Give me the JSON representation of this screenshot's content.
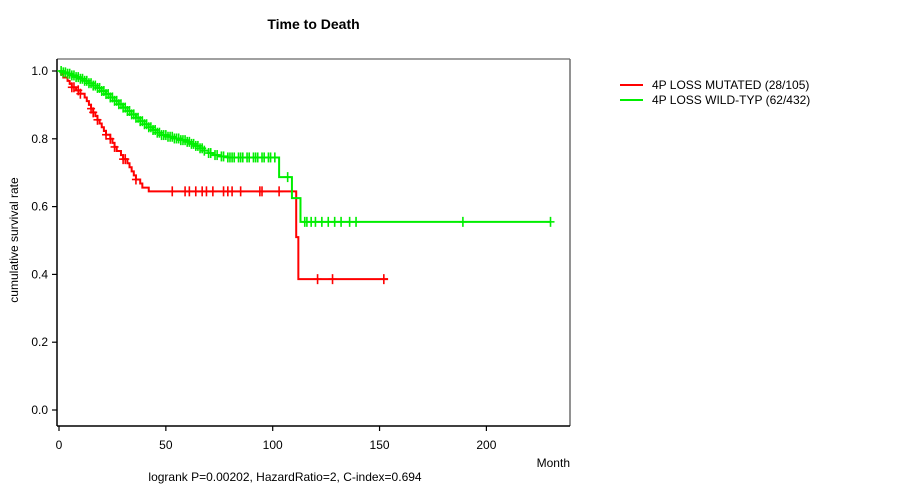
{
  "title": "Time to Death",
  "axes": {
    "x_label": "Month",
    "y_label": "cumulative survival rate",
    "x_ticks": [
      0,
      50,
      100,
      150,
      200
    ],
    "y_ticks": [
      "0.0",
      "0.2",
      "0.4",
      "0.6",
      "0.8",
      "1.0"
    ],
    "y_tick_values": [
      0.0,
      0.2,
      0.4,
      0.6,
      0.8,
      1.0
    ]
  },
  "footer": "logrank P=0.00202, HazardRatio=2, C-index=0.694",
  "legend": [
    {
      "label": "4P LOSS MUTATED (28/105)",
      "color": "#ff0000"
    },
    {
      "label": "4P LOSS WILD-TYP (62/432)",
      "color": "#00ee00"
    }
  ],
  "chart_data": {
    "type": "line",
    "subtype": "kaplan-meier-step",
    "title": "Time to Death",
    "xlabel": "Month",
    "ylabel": "cumulative survival rate",
    "xlim": [
      0,
      240
    ],
    "ylim": [
      0,
      1.0
    ],
    "grid": false,
    "legend_position": "right-outside",
    "stats_text": "logrank P=0.00202, HazardRatio=2, C-index=0.694",
    "series": [
      {
        "name": "4P LOSS MUTATED (28/105)",
        "color": "#ff0000",
        "events_over_n": "28/105",
        "end_month": 154,
        "steps": [
          [
            0,
            1.0
          ],
          [
            1,
            0.99
          ],
          [
            2,
            0.981
          ],
          [
            4,
            0.971
          ],
          [
            5,
            0.962
          ],
          [
            6,
            0.952
          ],
          [
            8,
            0.943
          ],
          [
            10,
            0.933
          ],
          [
            12,
            0.922
          ],
          [
            13,
            0.911
          ],
          [
            14,
            0.9
          ],
          [
            15,
            0.889
          ],
          [
            16,
            0.878
          ],
          [
            17,
            0.867
          ],
          [
            18,
            0.856
          ],
          [
            19,
            0.845
          ],
          [
            20,
            0.834
          ],
          [
            21,
            0.823
          ],
          [
            22,
            0.812
          ],
          [
            24,
            0.8
          ],
          [
            25,
            0.788
          ],
          [
            26,
            0.776
          ],
          [
            27,
            0.764
          ],
          [
            29,
            0.752
          ],
          [
            30,
            0.74
          ],
          [
            32,
            0.728
          ],
          [
            33,
            0.716
          ],
          [
            34,
            0.704
          ],
          [
            35,
            0.692
          ],
          [
            36,
            0.68
          ],
          [
            38,
            0.668
          ],
          [
            39,
            0.656
          ],
          [
            42,
            0.645
          ],
          [
            111,
            0.51
          ],
          [
            112,
            0.386
          ]
        ],
        "censor_months": [
          6,
          7,
          9,
          10,
          15,
          16,
          18,
          22,
          24,
          26,
          30,
          31,
          36,
          53,
          59,
          61,
          64,
          67,
          69,
          72,
          77,
          79,
          81,
          85,
          94,
          95,
          103,
          121,
          128,
          152
        ]
      },
      {
        "name": "4P LOSS WILD-TYP (62/432)",
        "color": "#00ee00",
        "events_over_n": "62/432",
        "end_month": 230,
        "steps": [
          [
            0,
            1.0
          ],
          [
            2,
            0.996
          ],
          [
            4,
            0.992
          ],
          [
            6,
            0.987
          ],
          [
            8,
            0.982
          ],
          [
            10,
            0.977
          ],
          [
            12,
            0.971
          ],
          [
            14,
            0.964
          ],
          [
            16,
            0.957
          ],
          [
            18,
            0.95
          ],
          [
            20,
            0.941
          ],
          [
            22,
            0.932
          ],
          [
            24,
            0.922
          ],
          [
            26,
            0.912
          ],
          [
            28,
            0.902
          ],
          [
            30,
            0.892
          ],
          [
            32,
            0.882
          ],
          [
            34,
            0.872
          ],
          [
            36,
            0.862
          ],
          [
            38,
            0.852
          ],
          [
            40,
            0.843
          ],
          [
            42,
            0.834
          ],
          [
            44,
            0.826
          ],
          [
            46,
            0.818
          ],
          [
            48,
            0.811
          ],
          [
            51,
            0.806
          ],
          [
            54,
            0.801
          ],
          [
            57,
            0.796
          ],
          [
            60,
            0.791
          ],
          [
            62,
            0.785
          ],
          [
            64,
            0.779
          ],
          [
            66,
            0.772
          ],
          [
            68,
            0.765
          ],
          [
            70,
            0.758
          ],
          [
            72,
            0.752
          ],
          [
            75,
            0.748
          ],
          [
            79,
            0.745
          ],
          [
            103,
            0.687
          ],
          [
            109,
            0.625
          ],
          [
            113,
            0.555
          ]
        ],
        "censor_months": [
          1,
          2,
          3,
          4,
          5,
          6,
          7,
          8,
          9,
          10,
          11,
          12,
          13,
          14,
          15,
          16,
          17,
          18,
          19,
          20,
          21,
          22,
          23,
          24,
          25,
          26,
          27,
          28,
          29,
          30,
          31,
          32,
          33,
          34,
          35,
          36,
          37,
          38,
          39,
          40,
          41,
          42,
          43,
          44,
          45,
          46,
          47,
          48,
          49,
          50,
          51,
          52,
          53,
          54,
          55,
          56,
          57,
          58,
          59,
          60,
          61,
          62,
          63,
          64,
          65,
          66,
          67,
          68,
          70,
          71,
          73,
          74,
          76,
          77,
          79,
          80,
          81,
          82,
          84,
          85,
          86,
          88,
          89,
          91,
          92,
          93,
          95,
          96,
          98,
          99,
          101,
          107,
          115,
          116,
          118,
          120,
          123,
          126,
          129,
          132,
          136,
          139,
          189,
          230
        ]
      }
    ],
    "stats": {
      "logrank_p": 0.00202,
      "hazard_ratio": 2,
      "c_index": 0.694
    }
  }
}
